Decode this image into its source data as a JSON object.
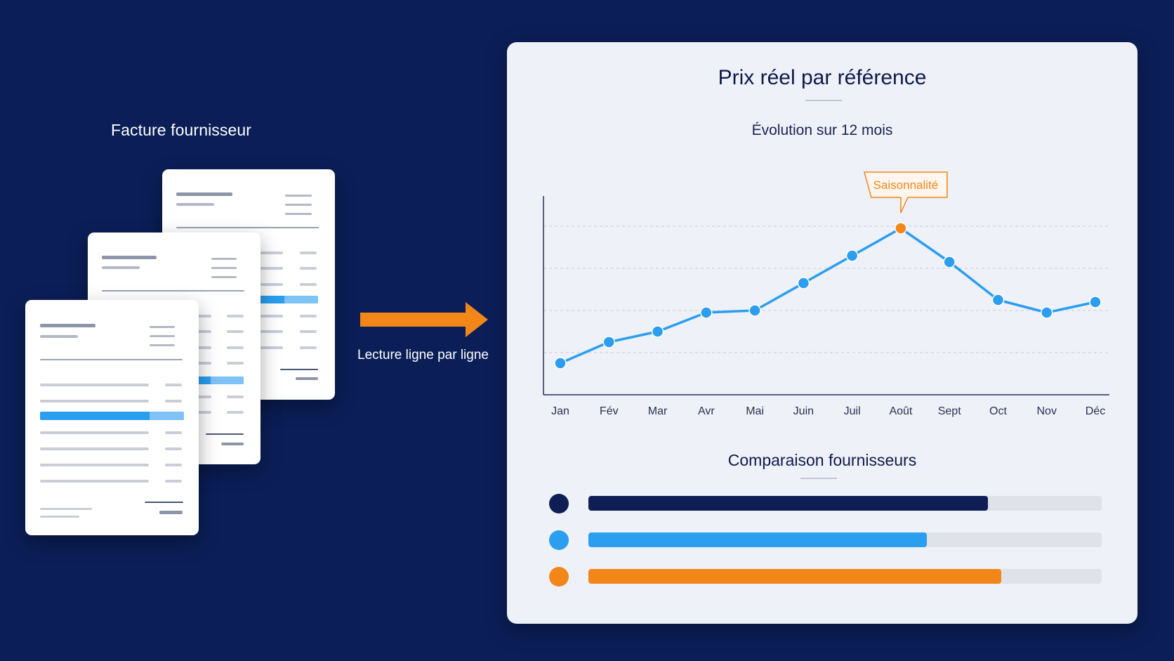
{
  "invoices": {
    "title": "Facture fournisseur"
  },
  "flow": {
    "label": "Lecture ligne par ligne"
  },
  "colors": {
    "background": "#0b1e57",
    "navy": "#0f1f55",
    "blue": "#2b9ef0",
    "orange": "#f28618",
    "doc_line": "#c9cdd6"
  },
  "card": {
    "title": "Prix réel par référence",
    "chart_subtitle": "Évolution sur 12 mois",
    "compare_title": "Comparaison fournisseurs"
  },
  "chart_data": {
    "type": "line",
    "categories": [
      "Jan",
      "Fév",
      "Mar",
      "Avr",
      "Mai",
      "Juin",
      "Juil",
      "Août",
      "Sept",
      "Oct",
      "Nov",
      "Déc"
    ],
    "values": [
      7.5,
      12.5,
      15,
      19.5,
      20,
      26.5,
      33,
      39.5,
      31.5,
      22.5,
      19.5,
      22
    ],
    "ylim": [
      0,
      47
    ],
    "grid": true,
    "gridlines": [
      10,
      20,
      30,
      40
    ],
    "annotation": {
      "label": "Saisonnalité",
      "category": "Août",
      "color": "#f28618"
    }
  },
  "suppliers": [
    {
      "color": "#0f1f55",
      "fraction": 0.778
    },
    {
      "color": "#2b9ef0",
      "fraction": 0.66
    },
    {
      "color": "#f28618",
      "fraction": 0.804
    }
  ]
}
